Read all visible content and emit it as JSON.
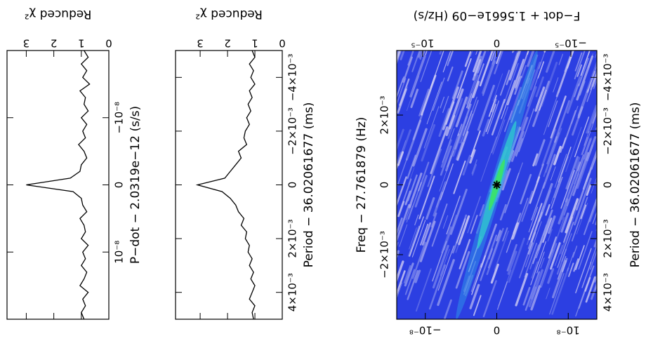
{
  "chart_data": [
    {
      "type": "line",
      "color": "#000000",
      "xlabel": "P−dot − 2.0319e−12 (s/s)",
      "ylabel": "Reduced χ²",
      "xlim": [
        -2e-08,
        2e-08
      ],
      "xticks": [
        {
          "value": -1e-08,
          "label": "−10⁻⁸"
        },
        0,
        {
          "value": 1e-08,
          "label": "10⁻⁸"
        }
      ],
      "ylim": [
        0,
        3.7
      ],
      "yticks": [
        0,
        1,
        2,
        3
      ],
      "x": [
        -2e-08,
        -1.9e-08,
        -1.8e-08,
        -1.7e-08,
        -1.6e-08,
        -1.5e-08,
        -1.4e-08,
        -1.3e-08,
        -1.2e-08,
        -1.1e-08,
        -1e-08,
        -9e-09,
        -8e-09,
        -7e-09,
        -6e-09,
        -5e-09,
        -4e-09,
        -3e-09,
        -2e-09,
        -1e-09,
        0,
        1e-09,
        2e-09,
        3e-09,
        4e-09,
        5e-09,
        6e-09,
        7e-09,
        8e-09,
        9e-09,
        1e-08,
        1.1e-08,
        1.2e-08,
        1.3e-08,
        1.4e-08,
        1.5e-08,
        1.6e-08,
        1.7e-08,
        1.8e-08,
        1.9e-08,
        2e-08
      ],
      "values": [
        0.9,
        0.75,
        1.0,
        0.8,
        0.95,
        0.7,
        1.05,
        0.85,
        0.9,
        0.75,
        1.0,
        0.8,
        0.95,
        0.85,
        1.1,
        0.9,
        0.8,
        1.0,
        1.05,
        1.4,
        3.0,
        1.3,
        1.0,
        0.95,
        0.8,
        1.05,
        0.9,
        0.85,
        1.0,
        0.75,
        0.95,
        0.85,
        1.0,
        0.8,
        0.9,
        1.05,
        0.75,
        0.95,
        0.85,
        1.0,
        0.9
      ]
    },
    {
      "type": "line",
      "color": "#000000",
      "xlabel": "Period − 36.02061677 (ms)",
      "ylabel": "Reduced χ²",
      "xlim": [
        -0.005,
        0.005
      ],
      "xticks": [
        {
          "value": -0.004,
          "label": "−4×10⁻³"
        },
        {
          "value": -0.002,
          "label": "−2×10⁻³"
        },
        0,
        {
          "value": 0.002,
          "label": "2×10⁻³"
        },
        {
          "value": 0.004,
          "label": "4×10⁻³"
        }
      ],
      "ylim": [
        0,
        3.9
      ],
      "yticks": [
        0,
        1,
        2,
        3
      ],
      "x": [
        -0.005,
        -0.00475,
        -0.0045,
        -0.00425,
        -0.004,
        -0.00375,
        -0.0035,
        -0.00325,
        -0.003,
        -0.00275,
        -0.0025,
        -0.00225,
        -0.002,
        -0.00175,
        -0.0015,
        -0.00125,
        -0.001,
        -0.00075,
        -0.0005,
        -0.00025,
        0,
        0.00025,
        0.0005,
        0.00075,
        0.001,
        0.00125,
        0.0015,
        0.00175,
        0.002,
        0.00225,
        0.0025,
        0.00275,
        0.003,
        0.00325,
        0.0035,
        0.00375,
        0.004,
        0.00425,
        0.0045,
        0.00475,
        0.005
      ],
      "values": [
        1.1,
        1.0,
        1.2,
        1.05,
        1.15,
        1.0,
        1.2,
        1.1,
        1.25,
        1.15,
        1.3,
        1.2,
        1.35,
        1.4,
        1.3,
        1.6,
        1.5,
        1.7,
        1.9,
        2.1,
        3.1,
        2.2,
        1.9,
        1.7,
        1.6,
        1.4,
        1.5,
        1.3,
        1.35,
        1.2,
        1.25,
        1.1,
        1.2,
        1.05,
        1.15,
        1.0,
        1.1,
        1.2,
        1.0,
        1.1,
        1.05
      ]
    },
    {
      "type": "heatmap",
      "xlabel": "P−dot − 2.0319e−12 (s/s)",
      "x2label": "F−dot + 1.5661e−09 (Hz/s)",
      "ylabel": "Period − 36.02061677 (ms)",
      "y2label": "Freq − 27.761879 (Hz)",
      "xlim": [
        -1.4e-08,
        1.4e-08
      ],
      "xticks": [
        {
          "value": -1e-08,
          "label": "−10⁻⁸"
        },
        0,
        {
          "value": 1e-08,
          "label": "10⁻⁸"
        }
      ],
      "x2lim": [
        1.35e-05,
        -1.35e-05
      ],
      "x2ticks": [
        {
          "value": 1e-05,
          "label": "10⁻⁵"
        },
        0,
        {
          "value": -1e-05,
          "label": "−10⁻⁵"
        }
      ],
      "ylim": [
        -0.005,
        0.005
      ],
      "yticks": [
        {
          "value": -0.004,
          "label": "−4×10⁻³"
        },
        {
          "value": -0.002,
          "label": "−2×10⁻³"
        },
        0,
        {
          "value": 0.002,
          "label": "2×10⁻³"
        },
        {
          "value": 0.004,
          "label": "4×10⁻³"
        }
      ],
      "y2lim": [
        0.00385,
        -0.00385
      ],
      "y2ticks": [
        {
          "value": 0.002,
          "label": "2×10⁻³"
        },
        0,
        {
          "value": -0.002,
          "label": "−2×10⁻³"
        }
      ],
      "marker": {
        "x": 0,
        "y": 0
      }
    }
  ]
}
